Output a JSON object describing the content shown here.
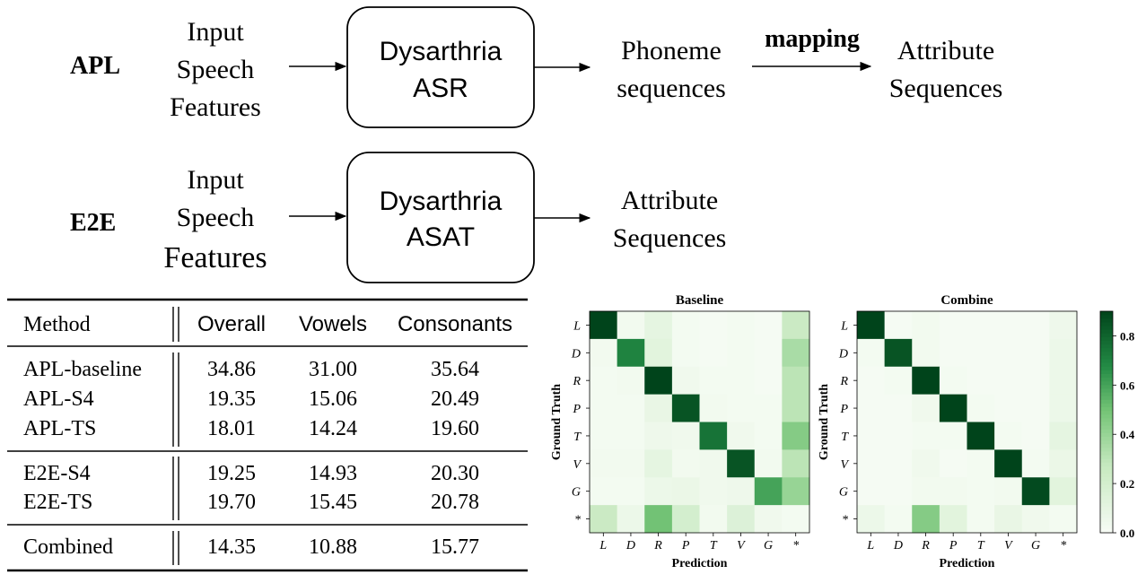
{
  "flow": {
    "apl": {
      "label": "APL",
      "input": [
        "Input",
        "Speech",
        "Features"
      ],
      "box": [
        "Dysarthria",
        "ASR"
      ],
      "output": [
        "Phoneme",
        "sequences"
      ],
      "arrow_label": "mapping",
      "final": [
        "Attribute",
        "Sequences"
      ]
    },
    "e2e": {
      "label": "E2E",
      "input": [
        "Input",
        "Speech",
        "Features"
      ],
      "box": [
        "Dysarthria",
        "ASAT"
      ],
      "output": [
        "Attribute",
        "Sequences"
      ]
    }
  },
  "table": {
    "headers": [
      "Method",
      "Overall",
      "Vowels",
      "Consonants"
    ],
    "groups": [
      [
        [
          "APL-baseline",
          "34.86",
          "31.00",
          "35.64"
        ],
        [
          "APL-S4",
          "19.35",
          "15.06",
          "20.49"
        ],
        [
          "APL-TS",
          "18.01",
          "14.24",
          "19.60"
        ]
      ],
      [
        [
          "E2E-S4",
          "19.25",
          "14.93",
          "20.30"
        ],
        [
          "E2E-TS",
          "19.70",
          "15.45",
          "20.78"
        ]
      ],
      [
        [
          "Combined",
          "14.35",
          "10.88",
          "15.77"
        ]
      ]
    ]
  },
  "chart_data": {
    "type": "heatmap",
    "labels": [
      "L",
      "D",
      "R",
      "P",
      "T",
      "V",
      "G",
      "*"
    ],
    "xlabel": "Prediction",
    "ylabel": "Ground Truth",
    "colorbar": {
      "range": [
        0.0,
        0.9
      ],
      "ticks": [
        "0.0",
        "0.2",
        "0.4",
        "0.6",
        "0.8"
      ]
    },
    "colormap": {
      "low": "#f7fcf5",
      "high": "#00441b"
    },
    "heatmaps": [
      {
        "title": "Baseline",
        "matrix": [
          [
            0.9,
            0.03,
            0.1,
            0.02,
            0.01,
            0.02,
            0.01,
            0.25
          ],
          [
            0.03,
            0.7,
            0.12,
            0.02,
            0.01,
            0.02,
            0.01,
            0.35
          ],
          [
            0.02,
            0.03,
            0.9,
            0.04,
            0.02,
            0.02,
            0.01,
            0.3
          ],
          [
            0.02,
            0.02,
            0.08,
            0.85,
            0.03,
            0.02,
            0.02,
            0.3
          ],
          [
            0.02,
            0.02,
            0.05,
            0.04,
            0.75,
            0.04,
            0.02,
            0.45
          ],
          [
            0.03,
            0.03,
            0.1,
            0.03,
            0.04,
            0.85,
            0.03,
            0.3
          ],
          [
            0.02,
            0.02,
            0.06,
            0.07,
            0.04,
            0.05,
            0.6,
            0.4
          ],
          [
            0.25,
            0.06,
            0.5,
            0.2,
            0.03,
            0.15,
            0.04,
            0.02
          ]
        ]
      },
      {
        "title": "Combine",
        "matrix": [
          [
            0.9,
            0.01,
            0.03,
            0.01,
            0.01,
            0.01,
            0.01,
            0.05
          ],
          [
            0.02,
            0.85,
            0.03,
            0.01,
            0.01,
            0.01,
            0.01,
            0.06
          ],
          [
            0.01,
            0.02,
            0.9,
            0.02,
            0.01,
            0.01,
            0.01,
            0.06
          ],
          [
            0.01,
            0.01,
            0.04,
            0.9,
            0.02,
            0.01,
            0.01,
            0.06
          ],
          [
            0.01,
            0.01,
            0.02,
            0.02,
            0.9,
            0.02,
            0.01,
            0.1
          ],
          [
            0.01,
            0.01,
            0.04,
            0.01,
            0.02,
            0.9,
            0.02,
            0.07
          ],
          [
            0.01,
            0.01,
            0.03,
            0.03,
            0.02,
            0.03,
            0.88,
            0.12
          ],
          [
            0.06,
            0.02,
            0.45,
            0.12,
            0.02,
            0.08,
            0.04,
            0.02
          ]
        ]
      }
    ]
  }
}
